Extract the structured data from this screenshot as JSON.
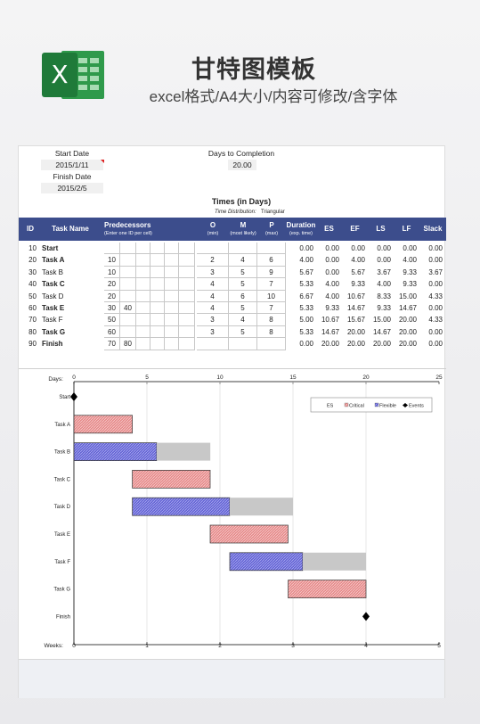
{
  "header": {
    "title": "甘特图模板",
    "subtitle": "excel格式/A4大小/内容可修改/含字体",
    "logo_letter": "X"
  },
  "inputs": {
    "start_date_label": "Start Date",
    "start_date_value": "2015/1/11",
    "finish_date_label": "Finish Date",
    "finish_date_value": "2015/2/5",
    "days_label": "Days to Completion",
    "days_value": "20.00"
  },
  "times": {
    "title": "Times (in Days)",
    "distribution_label": "Time Distribution:",
    "distribution_value": "Triangular"
  },
  "columns": {
    "id": "ID",
    "task_name": "Task Name",
    "predecessors": "Predecessors",
    "predecessors_sub": "(Enter one ID per cell)",
    "o": "O",
    "o_sub": "(min)",
    "m": "M",
    "m_sub": "(most likely)",
    "p": "P",
    "p_sub": "(max)",
    "duration": "Duration",
    "duration_sub": "(exp. time)",
    "es": "ES",
    "ef": "EF",
    "ls": "LS",
    "lf": "LF",
    "slack": "Slack"
  },
  "rows": [
    {
      "id": "10",
      "name": "Start",
      "pred1": "",
      "pred2": "",
      "o": "",
      "m": "",
      "p": "",
      "duration": "0.00",
      "es": "0.00",
      "ef": "0.00",
      "ls": "0.00",
      "lf": "0.00",
      "slack": "0.00"
    },
    {
      "id": "20",
      "name": "Task A",
      "pred1": "10",
      "pred2": "",
      "o": "2",
      "m": "4",
      "p": "6",
      "duration": "4.00",
      "es": "0.00",
      "ef": "4.00",
      "ls": "0.00",
      "lf": "4.00",
      "slack": "0.00"
    },
    {
      "id": "30",
      "name": "Task B",
      "pred1": "10",
      "pred2": "",
      "o": "3",
      "m": "5",
      "p": "9",
      "duration": "5.67",
      "es": "0.00",
      "ef": "5.67",
      "ls": "3.67",
      "lf": "9.33",
      "slack": "3.67"
    },
    {
      "id": "40",
      "name": "Task C",
      "pred1": "20",
      "pred2": "",
      "o": "4",
      "m": "5",
      "p": "7",
      "duration": "5.33",
      "es": "4.00",
      "ef": "9.33",
      "ls": "4.00",
      "lf": "9.33",
      "slack": "0.00"
    },
    {
      "id": "50",
      "name": "Task D",
      "pred1": "20",
      "pred2": "",
      "o": "4",
      "m": "6",
      "p": "10",
      "duration": "6.67",
      "es": "4.00",
      "ef": "10.67",
      "ls": "8.33",
      "lf": "15.00",
      "slack": "4.33"
    },
    {
      "id": "60",
      "name": "Task E",
      "pred1": "30",
      "pred2": "40",
      "o": "4",
      "m": "5",
      "p": "7",
      "duration": "5.33",
      "es": "9.33",
      "ef": "14.67",
      "ls": "9.33",
      "lf": "14.67",
      "slack": "0.00"
    },
    {
      "id": "70",
      "name": "Task F",
      "pred1": "50",
      "pred2": "",
      "o": "3",
      "m": "4",
      "p": "8",
      "duration": "5.00",
      "es": "10.67",
      "ef": "15.67",
      "ls": "15.00",
      "lf": "20.00",
      "slack": "4.33"
    },
    {
      "id": "80",
      "name": "Task G",
      "pred1": "60",
      "pred2": "",
      "o": "3",
      "m": "5",
      "p": "8",
      "duration": "5.33",
      "es": "14.67",
      "ef": "20.00",
      "ls": "14.67",
      "lf": "20.00",
      "slack": "0.00"
    },
    {
      "id": "90",
      "name": "Finish",
      "pred1": "70",
      "pred2": "80",
      "o": "",
      "m": "",
      "p": "",
      "duration": "0.00",
      "es": "20.00",
      "ef": "20.00",
      "ls": "20.00",
      "lf": "20.00",
      "slack": "0.00"
    }
  ],
  "bold_rows": [
    "Start",
    "Task A",
    "Task C",
    "Task E",
    "Task G",
    "Finish"
  ],
  "chart_data": {
    "type": "bar",
    "orientation": "horizontal-gantt",
    "days_axis_label": "Days:",
    "weeks_axis_label": "Weeks:",
    "days_ticks": [
      0,
      5,
      10,
      15,
      20,
      25
    ],
    "weeks_ticks": [
      0,
      1,
      2,
      3,
      4,
      5
    ],
    "xlim": [
      0,
      25
    ],
    "legend": [
      "ES",
      "Critical",
      "Flexible",
      "Events"
    ],
    "legend_position": "top-right",
    "categories": [
      "Start",
      "Task A",
      "Task B",
      "Task C",
      "Task D",
      "Task E",
      "Task F",
      "Task G",
      "Finish"
    ],
    "series": [
      {
        "name": "ES",
        "values": [
          0,
          0,
          0,
          4,
          4,
          9.33,
          10.67,
          14.67,
          20
        ]
      },
      {
        "name": "Critical",
        "values": [
          0,
          4,
          0,
          5.33,
          0,
          5.33,
          0,
          5.33,
          0
        ]
      },
      {
        "name": "Flexible",
        "values": [
          0,
          0,
          5.67,
          0,
          6.67,
          0,
          5,
          0,
          0
        ]
      },
      {
        "name": "Slack",
        "values": [
          0,
          0,
          3.67,
          0,
          4.33,
          0,
          4.33,
          0,
          0
        ]
      }
    ],
    "events": [
      "Start",
      "Finish"
    ],
    "colors": {
      "critical": "#e07a7a",
      "flexible": "#6b6bd8",
      "slack": "#c8c8c8",
      "events": "#000000"
    }
  }
}
